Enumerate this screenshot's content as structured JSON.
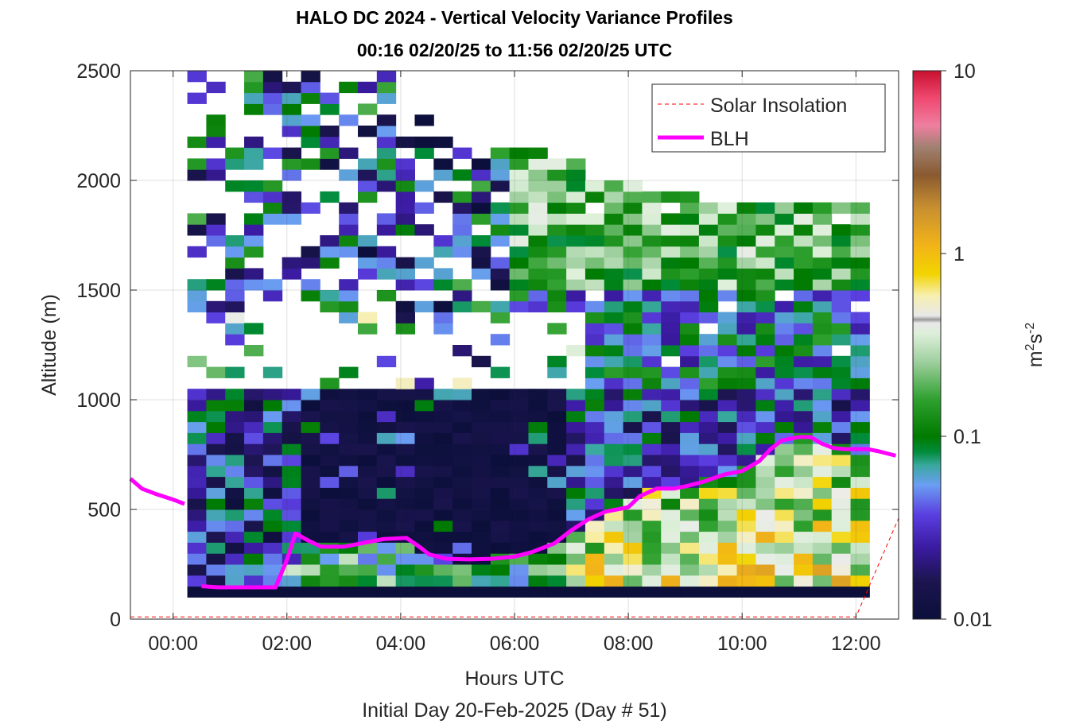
{
  "chart_data": {
    "type": "heatmap",
    "title": "HALO DC 2024 - Vertical Velocity Variance Profiles",
    "subtitle": "00:16 02/20/25 to 11:56 02/20/25  UTC",
    "xlabel": "Hours UTC",
    "xlabel2": "Initial Day 20-Feb-2025 (Day # 51)",
    "ylabel": "Altitude (m)",
    "xlim": [
      -0.75,
      12.75
    ],
    "ylim": [
      0,
      2500
    ],
    "x_ticks": [
      0,
      2,
      4,
      6,
      8,
      10,
      12
    ],
    "x_tick_labels": [
      "00:00",
      "02:00",
      "04:00",
      "06:00",
      "08:00",
      "10:00",
      "12:00"
    ],
    "y_ticks": [
      0,
      500,
      1000,
      1500,
      2000,
      2500
    ],
    "y_tick_labels": [
      "0",
      "500",
      "1000",
      "1500",
      "2000",
      "2500"
    ],
    "grid": true,
    "colorbar": {
      "label_base": "m",
      "label_sup1": "2",
      "label_mid": "s",
      "label_sup2": "-2",
      "scale": "log",
      "range": [
        0.01,
        10
      ],
      "ticks": [
        0.01,
        0.1,
        1,
        10
      ],
      "tick_labels": [
        "0.01",
        "0.1",
        "1",
        "10"
      ]
    },
    "legend": {
      "position": "top-right",
      "entries": [
        {
          "label": "Solar Insolation",
          "color": "#ff0000",
          "style": "dashed"
        },
        {
          "label": "BLH",
          "color": "#ff00ff",
          "style": "solid"
        }
      ]
    },
    "heatmap_x_range": [
      0.25,
      12.0
    ],
    "heatmap_y_range": [
      100,
      2500
    ],
    "bin_width_hours": 0.333,
    "bin_height_m": 50,
    "series": [
      {
        "name": "BLH",
        "color": "#ff00ff",
        "segments": [
          {
            "x": [
              -0.75,
              -0.55,
              -0.3,
              0.0,
              0.2
            ],
            "y": [
              640,
              595,
              570,
              545,
              525
            ]
          },
          {
            "x": [
              0.5,
              0.8,
              1.2,
              1.5,
              1.8,
              2.0,
              2.15,
              2.4,
              2.6,
              3.0,
              3.3,
              3.7,
              4.1,
              4.3,
              4.5,
              4.8,
              5.2,
              5.6,
              6.0,
              6.3,
              6.7,
              7.0,
              7.3,
              7.6,
              8.0,
              8.2,
              8.5,
              8.8,
              9.0,
              9.3,
              9.7,
              10.0,
              10.3,
              10.5,
              10.7,
              11.0,
              11.2,
              11.4,
              11.6,
              11.8,
              12.0,
              12.2,
              12.4,
              12.7
            ],
            "y": [
              150,
              145,
              145,
              145,
              145,
              270,
              390,
              355,
              330,
              330,
              345,
              365,
              370,
              335,
              295,
              275,
              272,
              275,
              285,
              305,
              345,
              405,
              455,
              490,
              510,
              560,
              595,
              595,
              605,
              625,
              660,
              675,
              720,
              775,
              815,
              830,
              830,
              800,
              780,
              775,
              775,
              775,
              765,
              745
            ]
          }
        ]
      },
      {
        "name": "Solar Insolation",
        "color": "#ff0000",
        "x": [
          -0.75,
          12.0,
          12.75
        ],
        "y": [
          10,
          10,
          460
        ]
      }
    ]
  }
}
